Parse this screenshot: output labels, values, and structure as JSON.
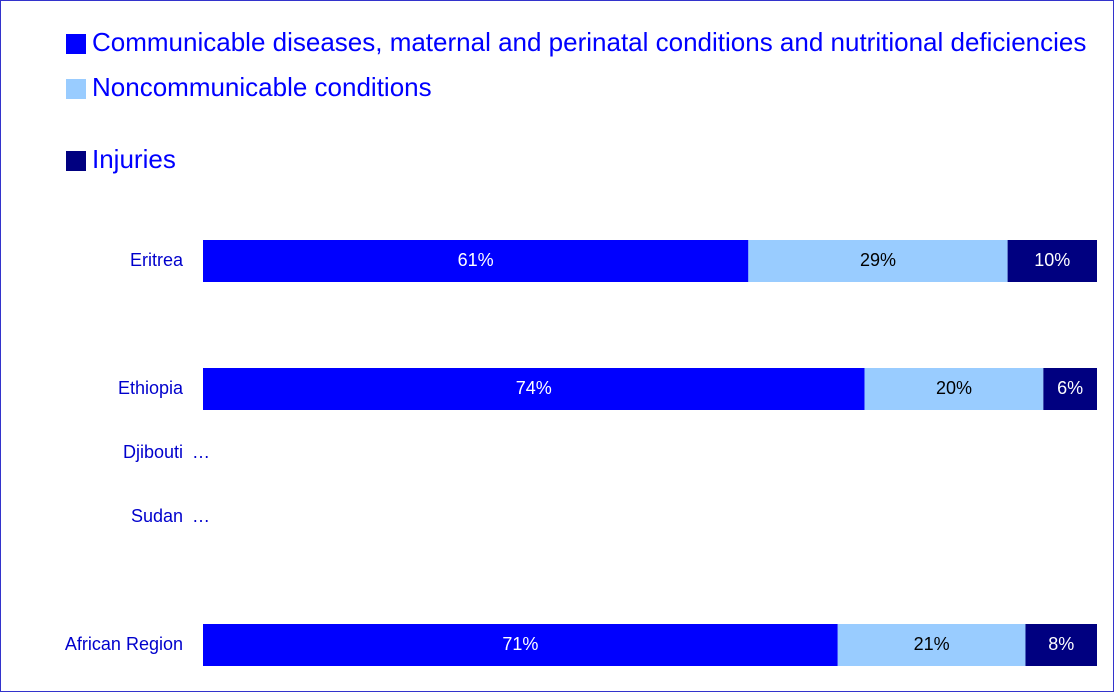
{
  "chart_data": {
    "type": "stacked-bar-horizontal",
    "categories": [
      "Eritrea",
      null,
      "Ethiopia",
      "Djibouti",
      "Sudan",
      null,
      "African Region"
    ],
    "series": [
      {
        "name": "Communicable diseases, maternal and perinatal conditions and nutritional deficiencies",
        "color": "#0000ff",
        "values": [
          61,
          null,
          74,
          null,
          null,
          null,
          71
        ],
        "value_labels": [
          "61%",
          null,
          "74%",
          "…",
          "…",
          null,
          "71%"
        ]
      },
      {
        "name": "Noncommunicable conditions",
        "color": "#99ccff",
        "values": [
          29,
          null,
          20,
          null,
          null,
          null,
          21
        ],
        "value_labels": [
          "29%",
          null,
          "20%",
          null,
          null,
          null,
          "21%"
        ]
      },
      {
        "name": "Injuries",
        "color": "#000080",
        "values": [
          10,
          null,
          6,
          null,
          null,
          null,
          8
        ],
        "value_labels": [
          "10%",
          null,
          "6%",
          null,
          null,
          null,
          "8%"
        ]
      }
    ],
    "xlim": [
      0,
      100
    ],
    "legend": "top-left"
  }
}
